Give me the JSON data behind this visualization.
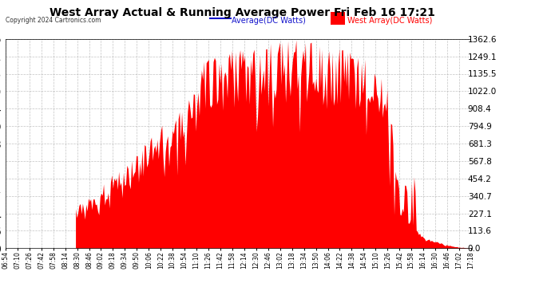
{
  "title": "West Array Actual & Running Average Power Fri Feb 16 17:21",
  "copyright": "Copyright 2024 Cartronics.com",
  "legend_avg": "Average(DC Watts)",
  "legend_west": "West Array(DC Watts)",
  "ylabel_values": [
    0.0,
    113.6,
    227.1,
    340.7,
    454.2,
    567.8,
    681.3,
    794.9,
    908.4,
    1022.0,
    1135.5,
    1249.1,
    1362.6
  ],
  "ymax": 1362.6,
  "ymin": 0.0,
  "bar_color": "#FF0000",
  "avg_line_color": "#1515CC",
  "background_color": "#FFFFFF",
  "grid_color": "#AAAAAA",
  "title_color": "#000000",
  "copyright_color": "#000000",
  "legend_avg_color": "#1515CC",
  "legend_west_color": "#FF0000",
  "x_tick_labels": [
    "06:54",
    "07:10",
    "07:26",
    "07:42",
    "07:58",
    "08:14",
    "08:30",
    "08:46",
    "09:02",
    "09:18",
    "09:34",
    "09:50",
    "10:06",
    "10:22",
    "10:38",
    "10:54",
    "11:10",
    "11:26",
    "11:42",
    "11:58",
    "12:14",
    "12:30",
    "12:46",
    "13:02",
    "13:18",
    "13:34",
    "13:50",
    "14:06",
    "14:22",
    "14:38",
    "14:54",
    "15:10",
    "15:26",
    "15:42",
    "15:58",
    "16:14",
    "16:30",
    "16:46",
    "17:02",
    "17:18"
  ],
  "num_points": 400
}
